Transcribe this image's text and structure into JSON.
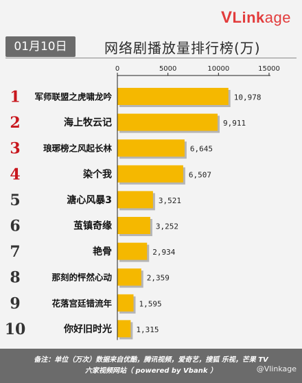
{
  "brand": {
    "logo_v": "V",
    "logo_link": "Link",
    "logo_age": "age"
  },
  "header": {
    "date": "01月10日",
    "title": "网络剧播放量排行榜(万)"
  },
  "footer": {
    "line1": "备注：单位（万次）数据来自优酷，腾讯视频，爱奇艺，搜狐 乐视，芒果 TV",
    "line2": "六家视频网站（ powered by Vbank ）"
  },
  "watermark": "@Vlinkage",
  "colors": {
    "bar": "#f5b800",
    "bar_shadow": "#b5b5b5",
    "rank": "#c8171e",
    "rank_dark": "#333333"
  },
  "chart_data": {
    "type": "bar",
    "orientation": "horizontal",
    "title": "网络剧播放量排行榜(万)",
    "xlim": [
      0,
      15000
    ],
    "xticks": [
      0,
      5000,
      10000,
      15000
    ],
    "xtick_labels": [
      "0",
      "5000",
      "10000",
      "15000"
    ],
    "grid": false,
    "ranks": [
      "1",
      "2",
      "3",
      "4",
      "5",
      "6",
      "7",
      "8",
      "9",
      "10"
    ],
    "categories": [
      "军师联盟之虎啸龙吟",
      "海上牧云记",
      "琅琊榜之风起长林",
      "染个我",
      "溏心风暴3",
      "茧镇奇缘",
      "艳骨",
      "那刻的怦然心动",
      "花落宫廷错流年",
      "你好旧时光"
    ],
    "values": [
      10978,
      9911,
      6645,
      6507,
      3521,
      3252,
      2934,
      2359,
      1595,
      1315
    ],
    "value_labels": [
      "10,978",
      "9,911",
      "6,645",
      "6,507",
      "3,521",
      "3,252",
      "2,934",
      "2,359",
      "1,595",
      "1,315"
    ]
  }
}
